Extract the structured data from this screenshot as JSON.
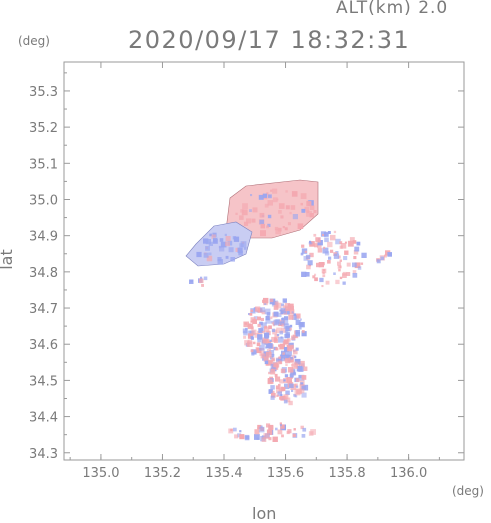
{
  "header": {
    "altitude": "ALT(km) 2.0",
    "datetime": "2020/09/17 18:32:31"
  },
  "axes": {
    "y_unit": "(deg)",
    "x_unit": "(deg)",
    "y_label": "lat",
    "x_label": "lon",
    "x_ticks": [
      "135.0",
      "135.2",
      "135.4",
      "135.6",
      "135.8",
      "136.0"
    ],
    "y_ticks": [
      "35.3",
      "35.2",
      "35.1",
      "35.0",
      "34.9",
      "34.8",
      "34.7",
      "34.6",
      "34.5",
      "34.4",
      "34.3"
    ]
  },
  "map": {
    "lon_range": [
      134.88,
      136.18
    ],
    "lat_range": [
      34.28,
      35.38
    ],
    "colors": {
      "positive": "#f4a8b0",
      "negative": "#9aa6f0",
      "axis": "#9a9a9a",
      "grid": "#d8d8d8"
    }
  }
}
